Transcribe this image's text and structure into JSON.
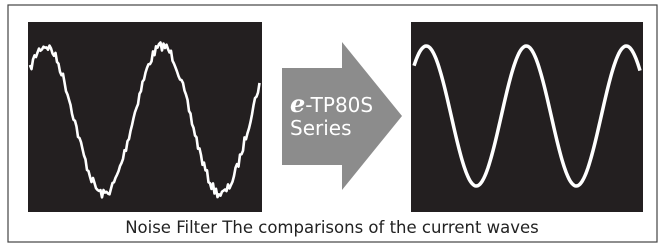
{
  "arrow": {
    "brand_prefix": "e",
    "model": "-TP80S",
    "series": "Series"
  },
  "caption": "Noise Filter The comparisons of the current waves"
}
